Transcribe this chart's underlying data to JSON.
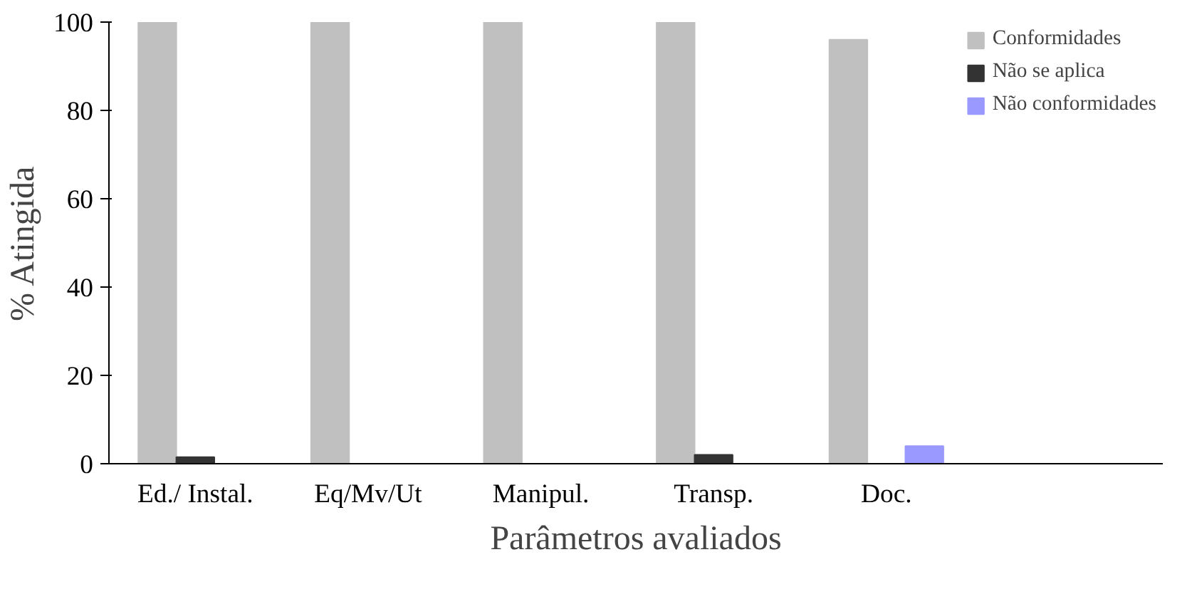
{
  "chart_data": {
    "type": "bar",
    "xlabel": "Parâmetros avaliados",
    "ylabel": "% Atingida",
    "categories": [
      "Ed./ Instal.",
      "Eq/Mv/Ut",
      "Manipul.",
      "Transp.",
      "Doc."
    ],
    "series": [
      {
        "name": "Conformidades",
        "color": "#c0c0c0",
        "values": [
          100,
          100,
          100,
          100,
          96
        ]
      },
      {
        "name": "Não se aplica",
        "color": "#333333",
        "values": [
          1.5,
          0,
          0,
          2,
          0
        ]
      },
      {
        "name": "Não conformidades",
        "color": "#9999ff",
        "values": [
          0,
          0,
          0,
          0,
          4
        ]
      }
    ],
    "ylim": [
      0,
      100
    ],
    "yticks": [
      0,
      20,
      40,
      60,
      80,
      100
    ],
    "grid": false,
    "legend": "top right"
  }
}
